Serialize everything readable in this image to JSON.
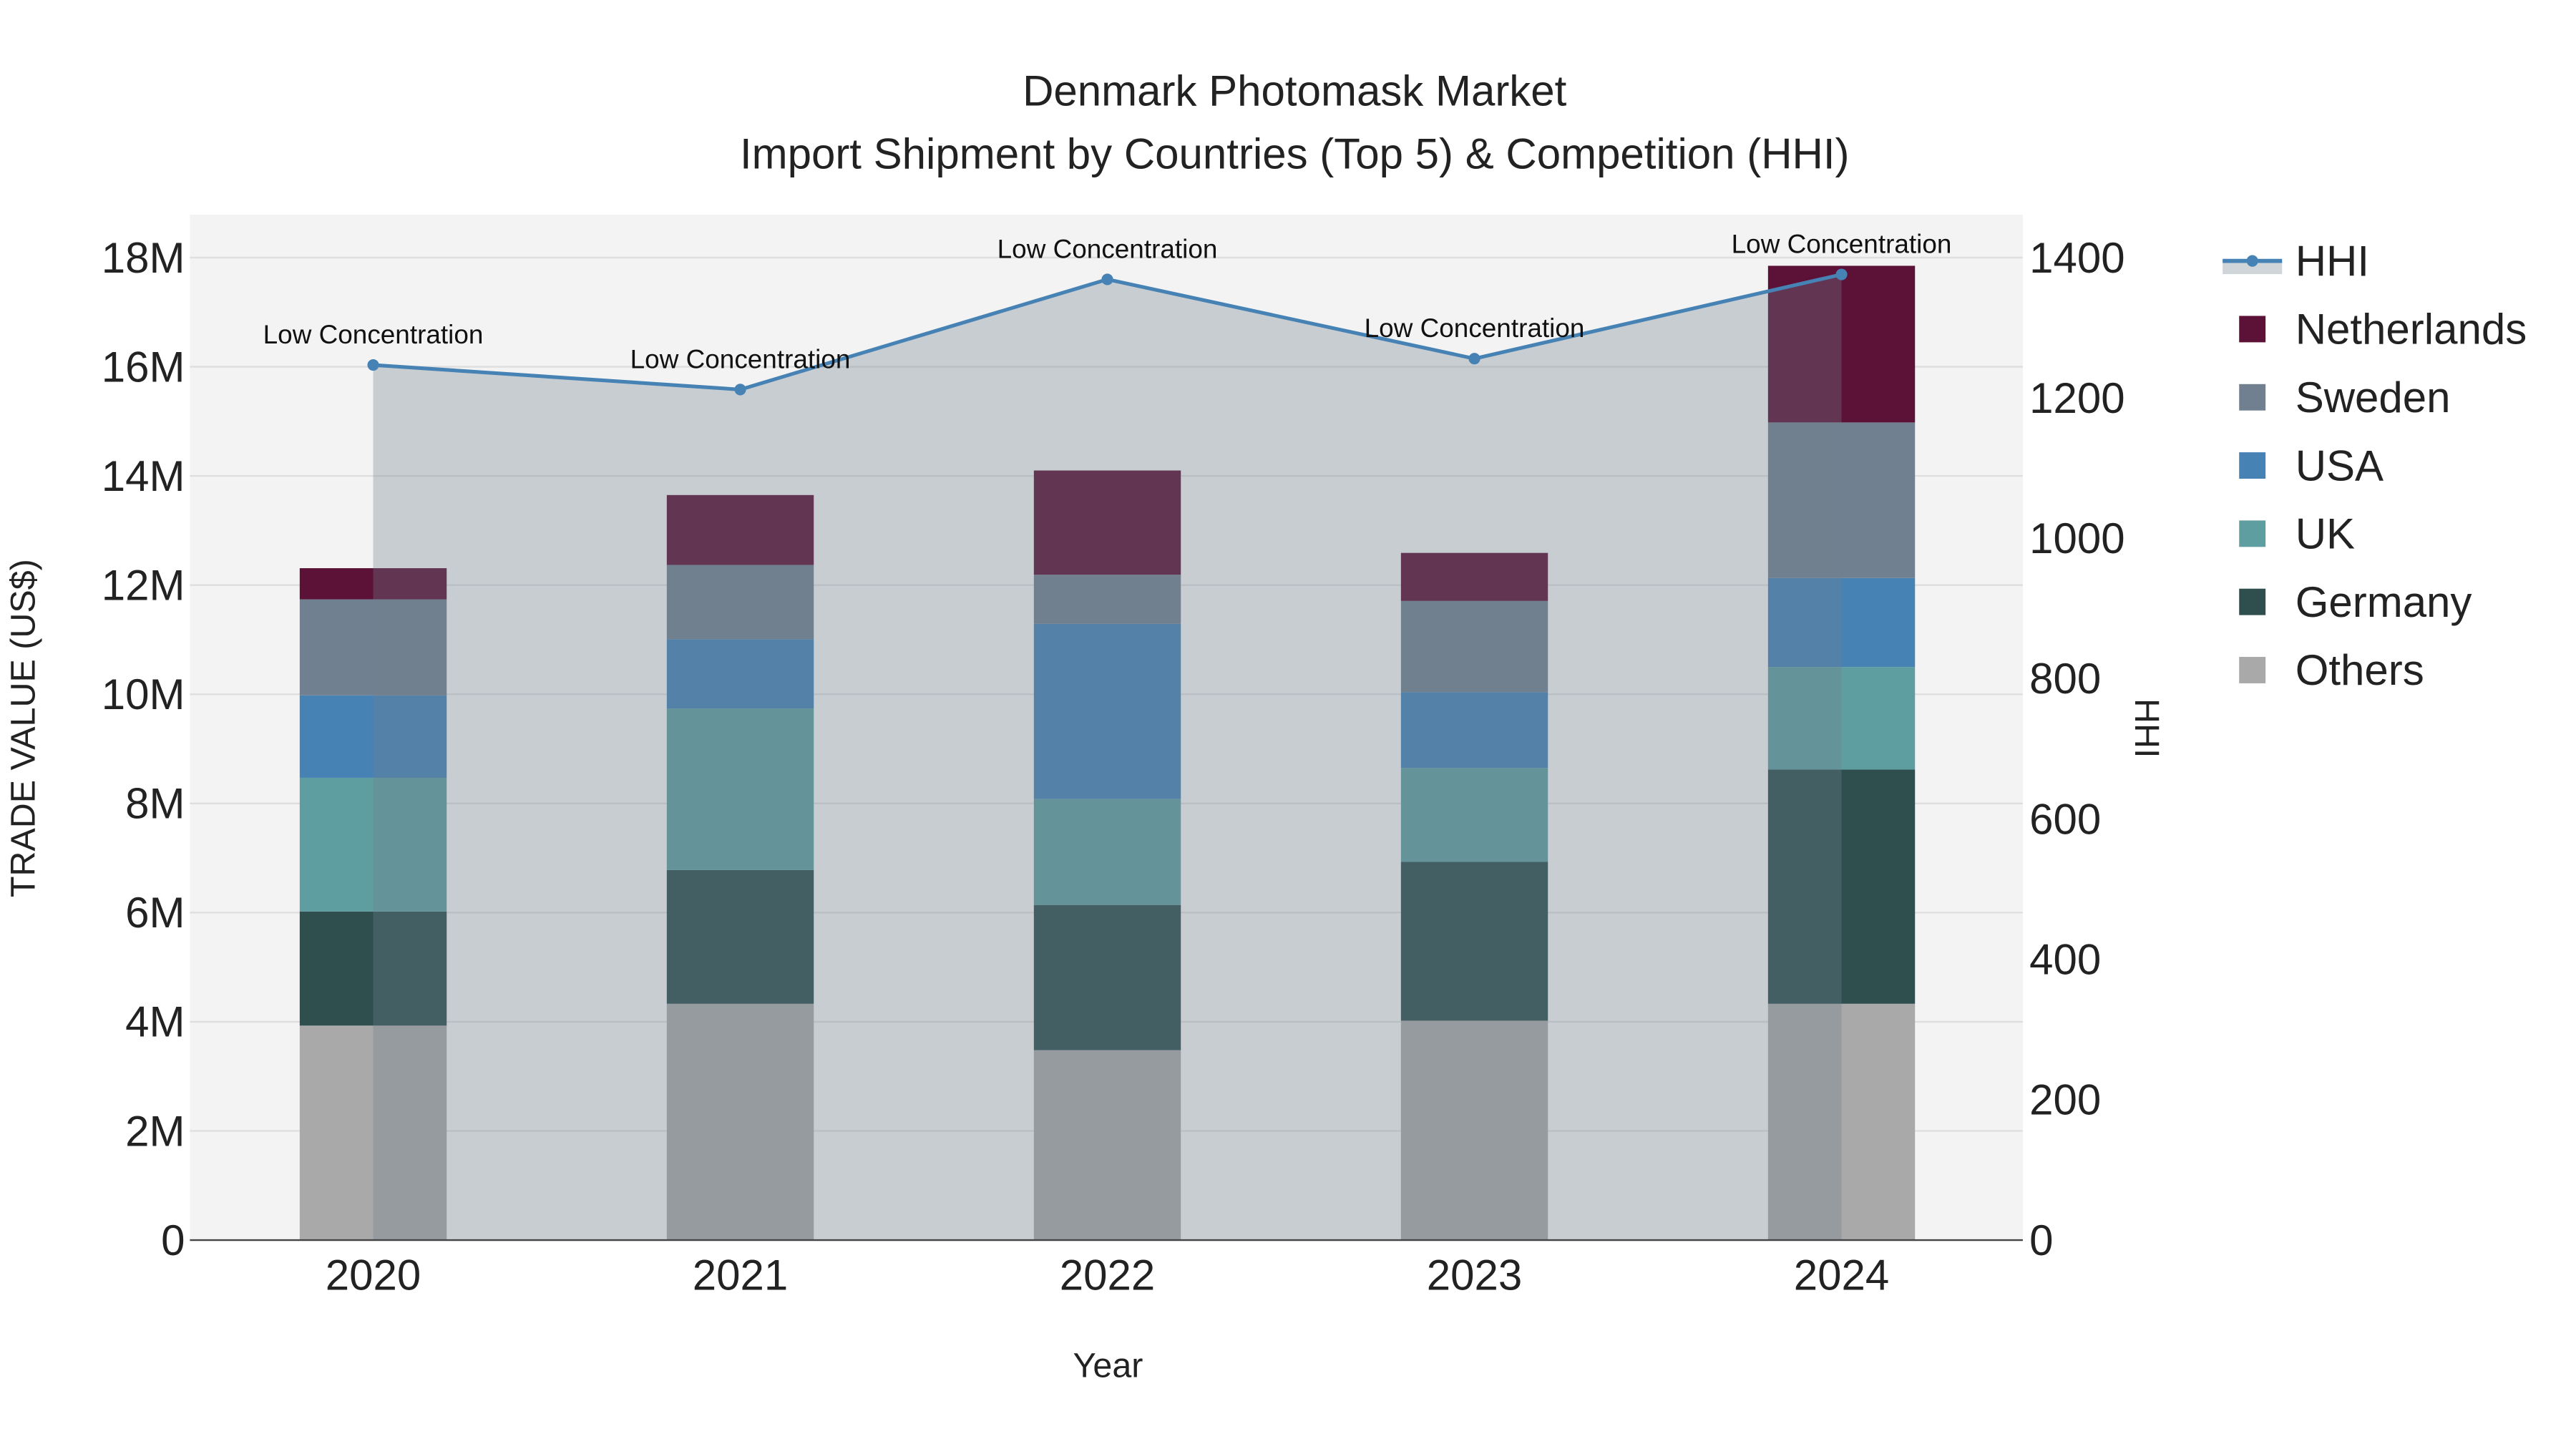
{
  "chart_data": {
    "type": "bar",
    "title": "Denmark Photomask Market",
    "subtitle": "Import Shipment by Countries (Top 5) & Competition (HHI)",
    "xlabel": "Year",
    "ylabel": "TRADE VALUE (US$)",
    "y2label": "HHI",
    "categories": [
      "2020",
      "2021",
      "2022",
      "2023",
      "2024"
    ],
    "ylim": [
      0,
      18800000
    ],
    "y2lim": [
      0,
      1460
    ],
    "yticks": [
      {
        "v": 0,
        "label": "0"
      },
      {
        "v": 2000000,
        "label": "2M"
      },
      {
        "v": 4000000,
        "label": "4M"
      },
      {
        "v": 6000000,
        "label": "6M"
      },
      {
        "v": 8000000,
        "label": "8M"
      },
      {
        "v": 10000000,
        "label": "10M"
      },
      {
        "v": 12000000,
        "label": "12M"
      },
      {
        "v": 14000000,
        "label": "14M"
      },
      {
        "v": 16000000,
        "label": "16M"
      },
      {
        "v": 18000000,
        "label": "18M"
      }
    ],
    "y2ticks": [
      {
        "v": 0,
        "label": "0"
      },
      {
        "v": 200,
        "label": "200"
      },
      {
        "v": 400,
        "label": "400"
      },
      {
        "v": 600,
        "label": "600"
      },
      {
        "v": 800,
        "label": "800"
      },
      {
        "v": 1000,
        "label": "1000"
      },
      {
        "v": 1200,
        "label": "1200"
      },
      {
        "v": 1400,
        "label": "1400"
      }
    ],
    "stacking": "stacked",
    "series": [
      {
        "name": "Others",
        "color": "#a9a9a9",
        "values": [
          3930000,
          4330000,
          3480000,
          4020000,
          4330000
        ]
      },
      {
        "name": "Germany",
        "color": "#2f4f4f",
        "values": [
          2090000,
          2450000,
          2660000,
          2910000,
          4290000
        ]
      },
      {
        "name": "UK",
        "color": "#5f9ea0",
        "values": [
          2450000,
          2960000,
          1940000,
          1720000,
          1880000
        ]
      },
      {
        "name": "USA",
        "color": "#4682b4",
        "values": [
          1510000,
          1270000,
          3210000,
          1390000,
          1630000
        ]
      },
      {
        "name": "Sweden",
        "color": "#708090",
        "values": [
          1760000,
          1360000,
          900000,
          1670000,
          2850000
        ]
      },
      {
        "name": "Netherlands",
        "color": "#5c1236",
        "values": [
          570000,
          1280000,
          1910000,
          880000,
          2870000
        ]
      }
    ],
    "line_series": {
      "name": "HHI",
      "color": "#4682b4",
      "axis": "y2",
      "values": [
        1247,
        1212,
        1369,
        1256,
        1376
      ],
      "fill": "tozeroy"
    },
    "annotations": [
      "Low Concentration",
      "Low Concentration",
      "Low Concentration",
      "Low Concentration",
      "Low Concentration"
    ],
    "legend_order": [
      "HHI",
      "Netherlands",
      "Sweden",
      "USA",
      "UK",
      "Germany",
      "Others"
    ],
    "legend_position": "right",
    "grid": true
  }
}
